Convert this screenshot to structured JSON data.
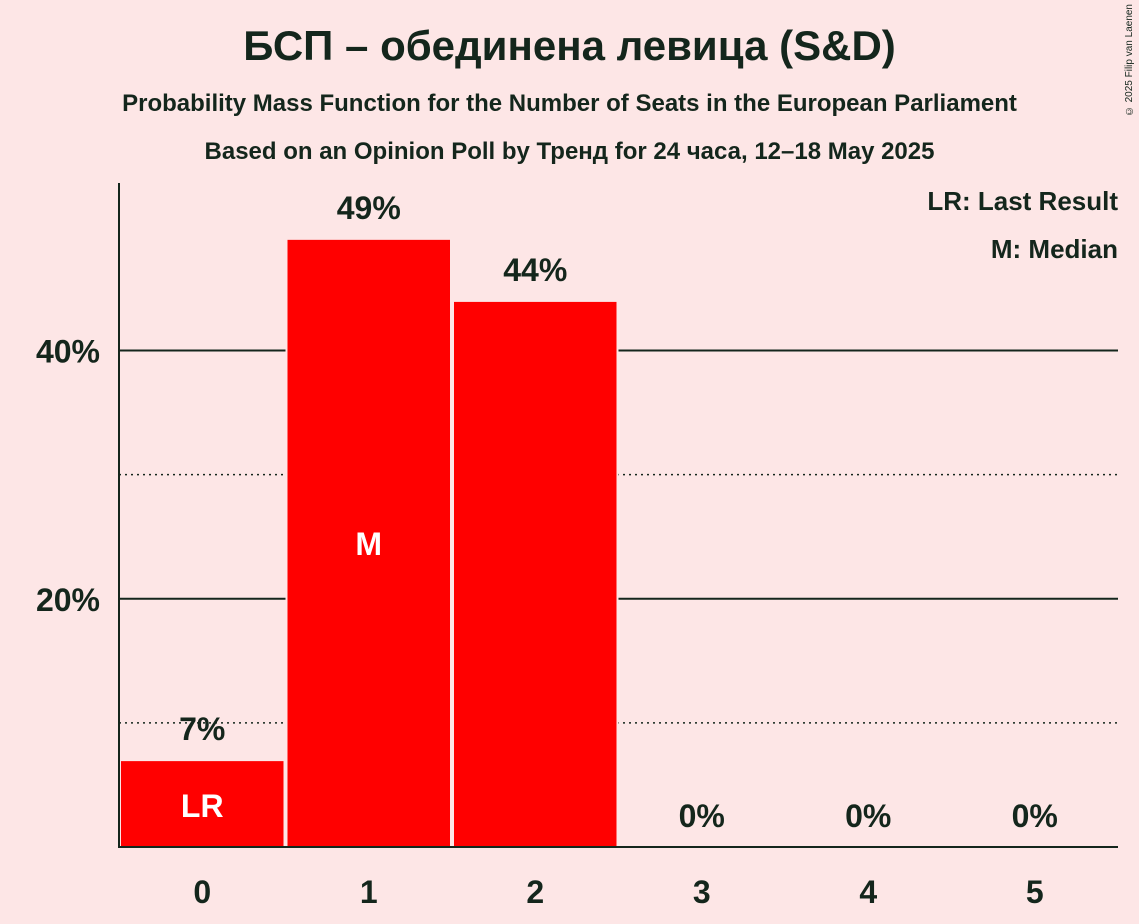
{
  "title": "БСП – обединена левица (S&D)",
  "subtitle": "Probability Mass Function for the Number of Seats in the European Parliament",
  "subtitle2": "Based on an Opinion Poll by Тренд for 24 часа, 12–18 May 2025",
  "copyright": "© 2025 Filip van Laenen",
  "legend": {
    "last_result": "LR: Last Result",
    "median": "M: Median"
  },
  "colors": {
    "bar": "#ff0000",
    "background": "#fde6e6",
    "text": "#14261c"
  },
  "chart_data": {
    "type": "bar",
    "categories": [
      "0",
      "1",
      "2",
      "3",
      "4",
      "5"
    ],
    "values": [
      7,
      49,
      44,
      0,
      0,
      0
    ],
    "value_labels": [
      "7%",
      "49%",
      "44%",
      "0%",
      "0%",
      "0%"
    ],
    "bar_markers": [
      "LR",
      "M",
      "",
      "",
      "",
      ""
    ],
    "ylim": [
      0,
      53.5
    ],
    "yticks": [
      20,
      40
    ],
    "ytick_labels": [
      "20%",
      "40%"
    ],
    "minor_gridlines": [
      10,
      30
    ],
    "legend_position": "top-right"
  }
}
